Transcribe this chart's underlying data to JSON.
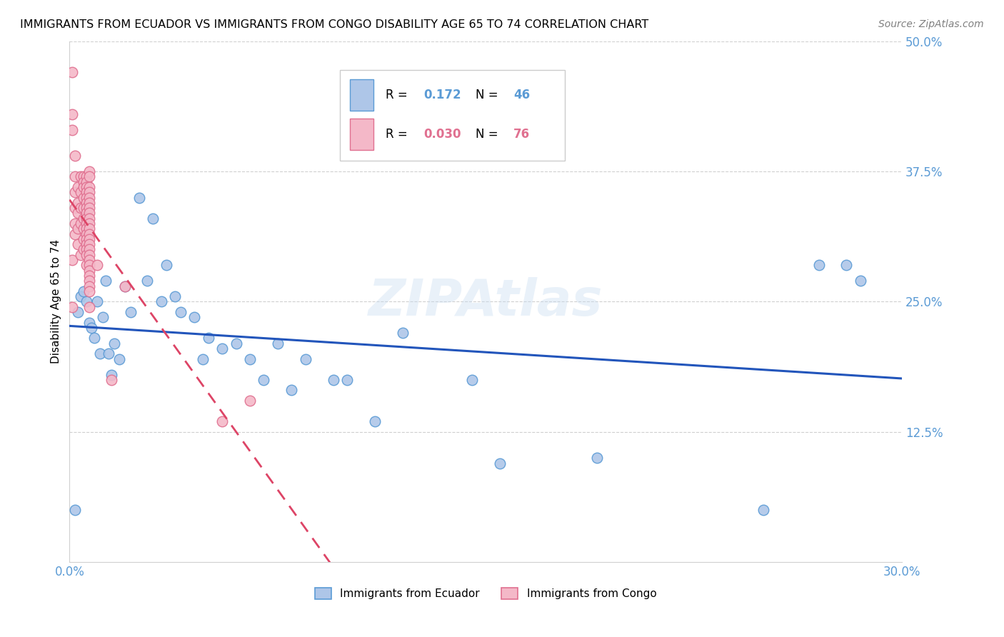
{
  "title": "IMMIGRANTS FROM ECUADOR VS IMMIGRANTS FROM CONGO DISABILITY AGE 65 TO 74 CORRELATION CHART",
  "source": "Source: ZipAtlas.com",
  "ylabel": "Disability Age 65 to 74",
  "x_min": 0.0,
  "x_max": 0.3,
  "y_min": 0.0,
  "y_max": 0.5,
  "ecuador_color": "#aec6e8",
  "ecuador_edge_color": "#5b9bd5",
  "congo_color": "#f4b8c8",
  "congo_edge_color": "#e07090",
  "ecuador_R": 0.172,
  "ecuador_N": 46,
  "congo_R": 0.03,
  "congo_N": 76,
  "ecuador_line_color": "#2255bb",
  "congo_line_color": "#dd4466",
  "watermark": "ZIPAtlas",
  "legend_ecuador_label": "Immigrants from Ecuador",
  "legend_congo_label": "Immigrants from Congo",
  "ecuador_x": [
    0.002,
    0.003,
    0.004,
    0.005,
    0.006,
    0.007,
    0.008,
    0.009,
    0.01,
    0.011,
    0.012,
    0.013,
    0.014,
    0.015,
    0.016,
    0.018,
    0.02,
    0.022,
    0.025,
    0.028,
    0.03,
    0.033,
    0.035,
    0.038,
    0.04,
    0.045,
    0.048,
    0.05,
    0.055,
    0.06,
    0.065,
    0.07,
    0.075,
    0.08,
    0.085,
    0.095,
    0.1,
    0.11,
    0.12,
    0.145,
    0.155,
    0.19,
    0.25,
    0.27,
    0.28,
    0.285
  ],
  "ecuador_y": [
    0.05,
    0.24,
    0.255,
    0.26,
    0.25,
    0.23,
    0.225,
    0.215,
    0.25,
    0.2,
    0.235,
    0.27,
    0.2,
    0.18,
    0.21,
    0.195,
    0.265,
    0.24,
    0.35,
    0.27,
    0.33,
    0.25,
    0.285,
    0.255,
    0.24,
    0.235,
    0.195,
    0.215,
    0.205,
    0.21,
    0.195,
    0.175,
    0.21,
    0.165,
    0.195,
    0.175,
    0.175,
    0.135,
    0.22,
    0.175,
    0.095,
    0.1,
    0.05,
    0.285,
    0.285,
    0.27
  ],
  "congo_x": [
    0.001,
    0.001,
    0.001,
    0.001,
    0.001,
    0.002,
    0.002,
    0.002,
    0.002,
    0.002,
    0.002,
    0.003,
    0.003,
    0.003,
    0.003,
    0.003,
    0.004,
    0.004,
    0.004,
    0.004,
    0.004,
    0.005,
    0.005,
    0.005,
    0.005,
    0.005,
    0.005,
    0.005,
    0.005,
    0.005,
    0.006,
    0.006,
    0.006,
    0.006,
    0.006,
    0.006,
    0.006,
    0.006,
    0.006,
    0.006,
    0.006,
    0.006,
    0.006,
    0.006,
    0.006,
    0.006,
    0.006,
    0.007,
    0.007,
    0.007,
    0.007,
    0.007,
    0.007,
    0.007,
    0.007,
    0.007,
    0.007,
    0.007,
    0.007,
    0.007,
    0.007,
    0.007,
    0.007,
    0.007,
    0.007,
    0.007,
    0.007,
    0.007,
    0.007,
    0.007,
    0.007,
    0.01,
    0.015,
    0.02,
    0.055,
    0.065
  ],
  "congo_y": [
    0.47,
    0.43,
    0.415,
    0.29,
    0.245,
    0.39,
    0.37,
    0.355,
    0.34,
    0.325,
    0.315,
    0.36,
    0.345,
    0.335,
    0.32,
    0.305,
    0.37,
    0.355,
    0.34,
    0.325,
    0.295,
    0.37,
    0.365,
    0.36,
    0.35,
    0.34,
    0.33,
    0.32,
    0.31,
    0.3,
    0.37,
    0.365,
    0.36,
    0.355,
    0.35,
    0.345,
    0.34,
    0.335,
    0.33,
    0.325,
    0.32,
    0.315,
    0.31,
    0.305,
    0.3,
    0.295,
    0.285,
    0.375,
    0.37,
    0.36,
    0.355,
    0.35,
    0.345,
    0.34,
    0.335,
    0.33,
    0.325,
    0.32,
    0.315,
    0.31,
    0.305,
    0.3,
    0.295,
    0.29,
    0.285,
    0.28,
    0.275,
    0.27,
    0.265,
    0.26,
    0.245,
    0.285,
    0.175,
    0.265,
    0.135,
    0.155
  ]
}
